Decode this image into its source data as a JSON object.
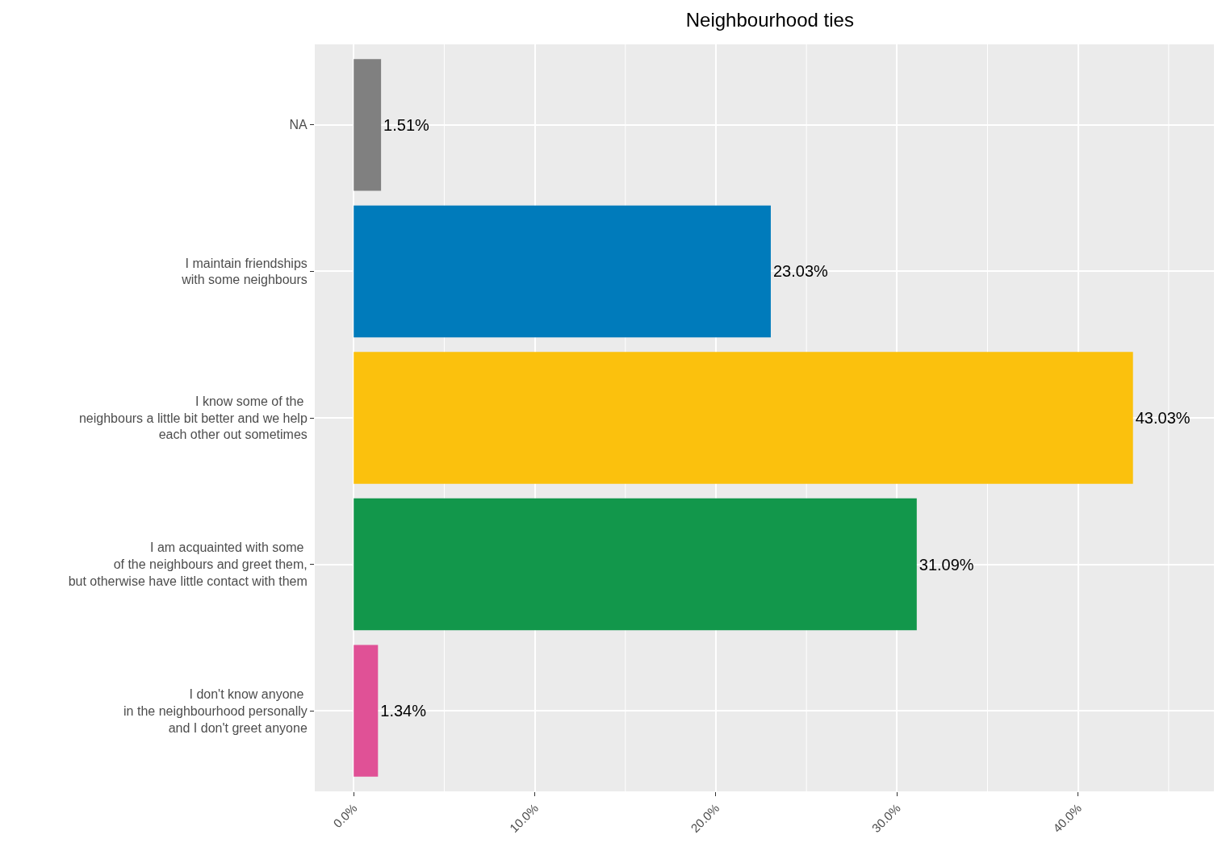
{
  "chart_data": {
    "type": "bar",
    "orientation": "horizontal",
    "title": "Neighbourhood ties",
    "categories": [
      "NA",
      "I maintain friendships\nwith some neighbours",
      "I know some of the \nneighbours a little bit better and we help\neach other out sometimes",
      "I am acquainted with some \nof the neighbours and greet them,\nbut otherwise have little contact with them",
      "I don't know anyone \nin the neighbourhood personally\nand I don't greet anyone"
    ],
    "values": [
      1.51,
      23.03,
      43.03,
      31.09,
      1.34
    ],
    "value_labels": [
      "1.51%",
      "23.03%",
      "43.03%",
      "31.09%",
      "1.34%"
    ],
    "colors": [
      "#808080",
      "#007bbb",
      "#fbc10d",
      "#12974b",
      "#e05196"
    ],
    "xlim": [
      -2.15,
      47.5
    ],
    "xticks": [
      {
        "value": 0,
        "label": "0.0%"
      },
      {
        "value": 10,
        "label": "10.0%"
      },
      {
        "value": 20,
        "label": "20.0%"
      },
      {
        "value": 30,
        "label": "30.0%"
      },
      {
        "value": 40,
        "label": "40.0%"
      }
    ],
    "grid": true
  }
}
